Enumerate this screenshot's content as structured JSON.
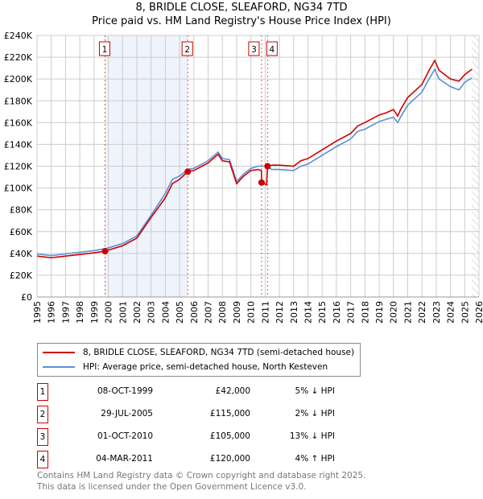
{
  "chart_data": {
    "type": "line",
    "title": "8, BRIDLE CLOSE, SLEAFORD, NG34 7TD",
    "subtitle": "Price paid vs. HM Land Registry's House Price Index (HPI)",
    "xlim": [
      1995,
      2026
    ],
    "ylim": [
      0,
      240000
    ],
    "x_ticks": [
      "1995",
      "1996",
      "1997",
      "1998",
      "1999",
      "2000",
      "2001",
      "2002",
      "2003",
      "2004",
      "2005",
      "2006",
      "2007",
      "2008",
      "2009",
      "2010",
      "2011",
      "2012",
      "2013",
      "2014",
      "2015",
      "2016",
      "2017",
      "2018",
      "2019",
      "2020",
      "2021",
      "2022",
      "2023",
      "2024",
      "2025",
      "2026"
    ],
    "y_ticks": [
      {
        "v": 0,
        "label": "£0"
      },
      {
        "v": 20000,
        "label": "£20K"
      },
      {
        "v": 40000,
        "label": "£40K"
      },
      {
        "v": 60000,
        "label": "£60K"
      },
      {
        "v": 80000,
        "label": "£80K"
      },
      {
        "v": 100000,
        "label": "£100K"
      },
      {
        "v": 120000,
        "label": "£120K"
      },
      {
        "v": 140000,
        "label": "£140K"
      },
      {
        "v": 160000,
        "label": "£160K"
      },
      {
        "v": 180000,
        "label": "£180K"
      },
      {
        "v": 200000,
        "label": "£200K"
      },
      {
        "v": 220000,
        "label": "£220K"
      },
      {
        "v": 240000,
        "label": "£240K"
      }
    ],
    "grid": true,
    "shaded_range": [
      1999.77,
      2005.57
    ],
    "hatched_from": 2025.5,
    "series": [
      {
        "name": "8, BRIDLE CLOSE, SLEAFORD, NG34 7TD (semi-detached house)",
        "color": "#cc0000",
        "x": [
          1995,
          1996,
          1997,
          1998,
          1999,
          1999.77,
          2000,
          2001,
          2002,
          2003,
          2004,
          2004.5,
          2005,
          2005.57,
          2006,
          2007,
          2007.7,
          2008,
          2008.5,
          2009,
          2009.5,
          2010,
          2010.5,
          2010.74,
          2010.75,
          2011.1,
          2011.17,
          2011.5,
          2012,
          2013,
          2013.5,
          2014,
          2015,
          2016,
          2017,
          2017.5,
          2018,
          2019,
          2019.5,
          2020,
          2020.3,
          2020.5,
          2021,
          2022,
          2022.5,
          2022.9,
          2023.2,
          2024,
          2024.6,
          2025,
          2025.5
        ],
        "y": [
          37500,
          36000,
          37500,
          39000,
          40500,
          42000,
          43000,
          47000,
          54000,
          73000,
          91000,
          104000,
          108000,
          115000,
          116000,
          123000,
          131000,
          125000,
          124000,
          104000,
          111000,
          116000,
          117000,
          116000,
          105000,
          103000,
          120000,
          121000,
          121000,
          120000,
          125000,
          127000,
          135000,
          143000,
          150000,
          157000,
          160000,
          167000,
          169000,
          172000,
          166000,
          172000,
          183000,
          195000,
          208000,
          217000,
          208000,
          200000,
          198000,
          204000,
          209000
        ]
      },
      {
        "name": "HPI: Average price, semi-detached house, North Kesteven",
        "color": "#5b8fd6",
        "x": [
          1995,
          1996,
          1997,
          1998,
          1999,
          2000,
          2001,
          2002,
          2003,
          2004,
          2004.5,
          2005,
          2005.6,
          2006,
          2007,
          2007.7,
          2008,
          2008.5,
          2009,
          2009.5,
          2010,
          2010.5,
          2011,
          2011.5,
          2012,
          2013,
          2013.5,
          2014,
          2015,
          2016,
          2017,
          2017.5,
          2018,
          2019,
          2019.5,
          2020,
          2020.3,
          2020.5,
          2021,
          2022,
          2022.5,
          2022.9,
          2023.2,
          2024,
          2024.6,
          2025,
          2025.5
        ],
        "y": [
          39500,
          38000,
          39500,
          41000,
          42500,
          45000,
          49000,
          56000,
          75000,
          95000,
          108000,
          111000,
          117000,
          118000,
          125000,
          133000,
          127000,
          126000,
          106000,
          113000,
          118000,
          120000,
          120000,
          117000,
          117000,
          116000,
          120000,
          122000,
          130000,
          138000,
          145000,
          152000,
          154000,
          161000,
          163000,
          165000,
          160000,
          165000,
          176000,
          188000,
          200000,
          209000,
          200000,
          193000,
          190000,
          197000,
          201000
        ]
      }
    ],
    "sales": [
      {
        "n": "1",
        "x": 1999.77,
        "y": 42000,
        "date": "08-OCT-1999",
        "price": "£42,000",
        "hpi": "5% ↓ HPI"
      },
      {
        "n": "2",
        "x": 2005.57,
        "y": 115000,
        "date": "29-JUL-2005",
        "price": "£115,000",
        "hpi": "2% ↓ HPI"
      },
      {
        "n": "3",
        "x": 2010.75,
        "y": 105000,
        "date": "01-OCT-2010",
        "price": "£105,000",
        "hpi": "13% ↓ HPI"
      },
      {
        "n": "4",
        "x": 2011.17,
        "y": 120000,
        "date": "04-MAR-2011",
        "price": "£120,000",
        "hpi": "4% ↑ HPI"
      }
    ]
  },
  "footer": {
    "line1": "Contains HM Land Registry data © Crown copyright and database right 2025.",
    "line2": "This data is licensed under the Open Government Licence v3.0."
  }
}
